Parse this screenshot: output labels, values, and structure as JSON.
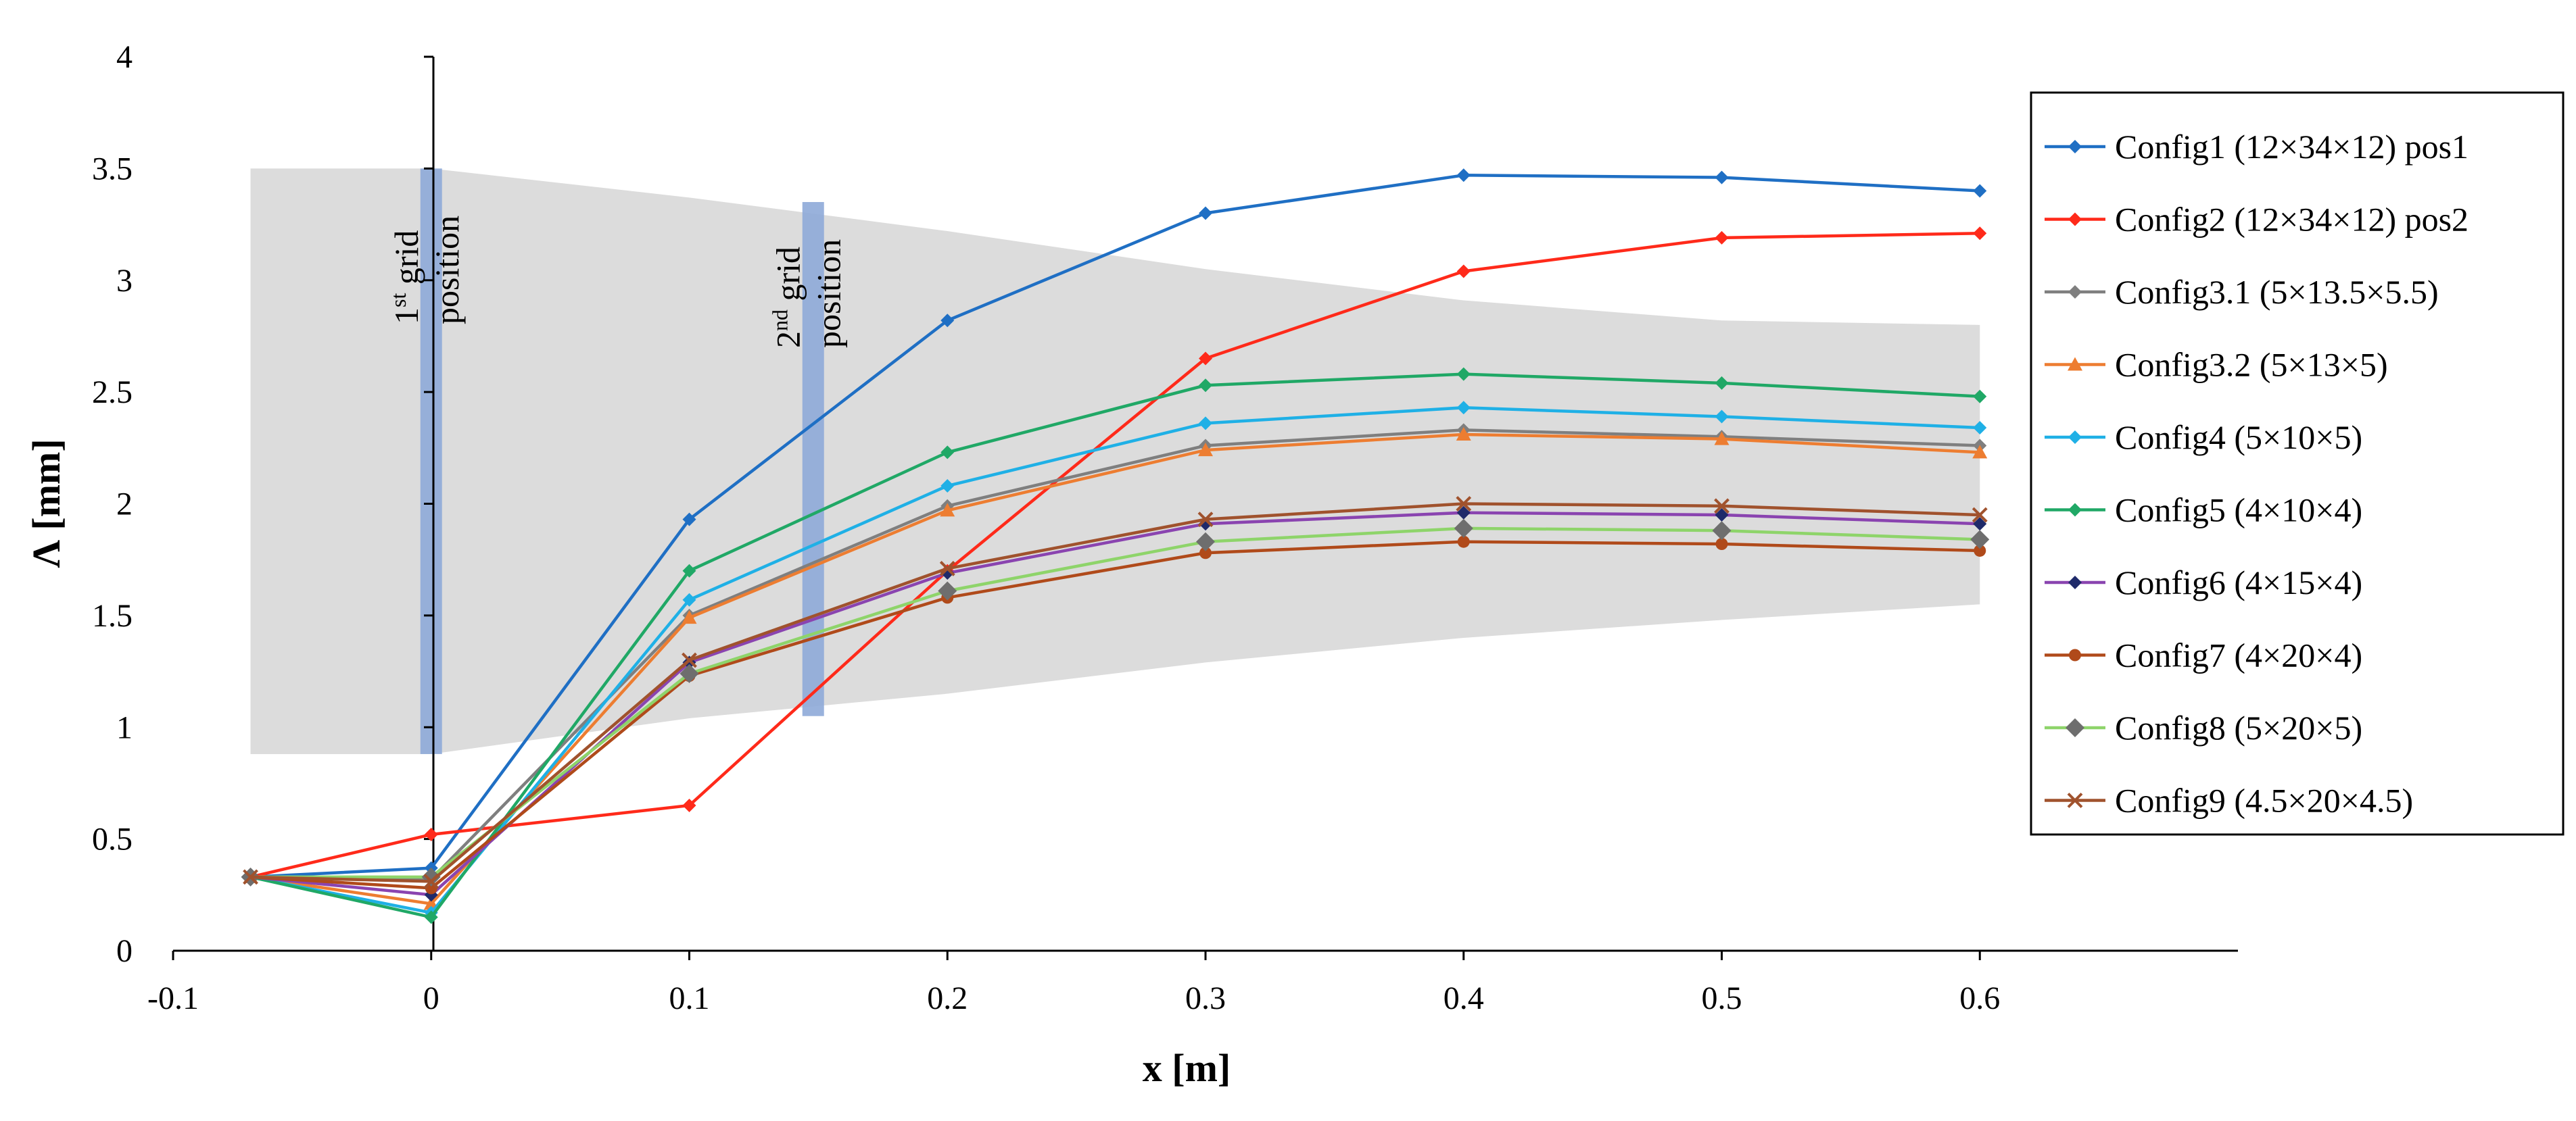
{
  "chart_data": {
    "type": "line",
    "title": "",
    "xlabel": "x [m]",
    "ylabel": "Λ [mm]",
    "xlim": [
      -0.1,
      0.7
    ],
    "ylim": [
      0,
      4
    ],
    "x_ticks": [
      "-0.1",
      "0",
      "0.1",
      "0.2",
      "0.3",
      "0.4",
      "0.5",
      "0.6"
    ],
    "x_tick_values": [
      -0.1,
      0,
      0.1,
      0.2,
      0.3,
      0.4,
      0.5,
      0.6
    ],
    "y_ticks": [
      "0",
      "0.5",
      "1",
      "1.5",
      "2",
      "2.5",
      "3",
      "3.5",
      "4"
    ],
    "y_tick_values": [
      0,
      0.5,
      1,
      1.5,
      2,
      2.5,
      3,
      3.5,
      4
    ],
    "grid": false,
    "legend_position": "right",
    "x": [
      -0.07,
      0,
      0.1,
      0.2,
      0.3,
      0.4,
      0.5,
      0.6
    ],
    "series": [
      {
        "name": "Config1 (12×34×12) pos1",
        "color": "#1f6fc4",
        "marker": "diamond",
        "values": [
          0.33,
          0.37,
          1.93,
          2.82,
          3.3,
          3.47,
          3.46,
          3.4
        ]
      },
      {
        "name": "Config2 (12×34×12) pos2",
        "color": "#ff2a1a",
        "marker": "diamond",
        "values": [
          0.33,
          0.52,
          0.65,
          1.7,
          2.65,
          3.04,
          3.19,
          3.21
        ]
      },
      {
        "name": "Config3.1 (5×13.5×5.5)",
        "color": "#7f7f7f",
        "marker": "diamond",
        "values": [
          0.33,
          0.32,
          1.5,
          1.99,
          2.26,
          2.33,
          2.3,
          2.26
        ]
      },
      {
        "name": "Config3.2 (5×13×5)",
        "color": "#ed7d31",
        "marker": "triangle",
        "values": [
          0.33,
          0.21,
          1.49,
          1.97,
          2.24,
          2.31,
          2.29,
          2.23
        ]
      },
      {
        "name": "Config4 (5×10×5)",
        "color": "#1fb0e6",
        "marker": "diamond",
        "values": [
          0.33,
          0.17,
          1.57,
          2.08,
          2.36,
          2.43,
          2.39,
          2.34
        ]
      },
      {
        "name": "Config5 (4×10×4)",
        "color": "#20a866",
        "marker": "diamond",
        "values": [
          0.33,
          0.15,
          1.7,
          2.23,
          2.53,
          2.58,
          2.54,
          2.48
        ]
      },
      {
        "name": "Config6 (4×15×4)",
        "color": "#8a44b0",
        "marker": "diamond-dark",
        "values": [
          0.33,
          0.25,
          1.29,
          1.69,
          1.91,
          1.96,
          1.95,
          1.91
        ]
      },
      {
        "name": "Config7 (4×20×4)",
        "color": "#b04a1a",
        "marker": "circle",
        "values": [
          0.33,
          0.28,
          1.23,
          1.58,
          1.78,
          1.83,
          1.82,
          1.79
        ]
      },
      {
        "name": "Config8 (5×20×5)",
        "color": "#8ed46a",
        "marker": "diamond-gray",
        "values": [
          0.33,
          0.33,
          1.24,
          1.61,
          1.83,
          1.89,
          1.88,
          1.84
        ]
      },
      {
        "name": "Config9 (4.5×20×4.5)",
        "color": "#a0522d",
        "marker": "x",
        "values": [
          0.33,
          0.31,
          1.3,
          1.71,
          1.93,
          2.0,
          1.99,
          1.95
        ]
      }
    ],
    "envelope": {
      "x": [
        -0.07,
        0,
        0.1,
        0.2,
        0.3,
        0.4,
        0.5,
        0.6
      ],
      "upper": [
        3.5,
        3.5,
        3.37,
        3.22,
        3.05,
        2.91,
        2.82,
        2.8
      ],
      "lower": [
        0.88,
        0.88,
        1.04,
        1.15,
        1.29,
        1.4,
        1.48,
        1.55
      ],
      "color": "#dcdcdc"
    },
    "grid_positions": [
      {
        "label_ordinal": "1",
        "label_sup": "st",
        "label_word": "grid",
        "label_line2": "position",
        "x": 0.0,
        "y_range": [
          0.88,
          3.5
        ]
      },
      {
        "label_ordinal": "2",
        "label_sup": "nd",
        "label_word": "grid",
        "label_line2": "position",
        "x": 0.148,
        "y_range": [
          1.05,
          3.35
        ]
      }
    ],
    "grid_band_color": "#8eaad8"
  }
}
